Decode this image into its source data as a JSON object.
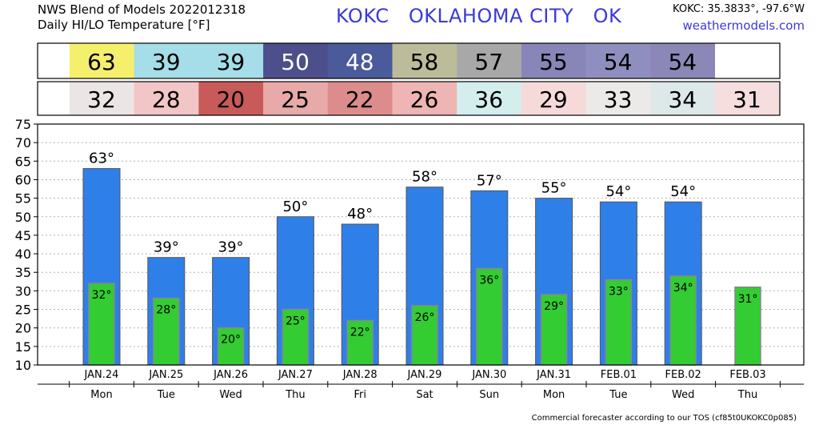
{
  "header": {
    "line1": "NWS Blend of Models 2022012318",
    "line2": "Daily HI/LO Temperature [°F]",
    "station": "KOKC   OKLAHOMA CITY   OK",
    "coords": "KOKC: 35.3833°, -97.6°W",
    "site": "weathermodels.com"
  },
  "footer": "Commercial forecaster according to our TOS (cf85t0UKOKC0p085)",
  "colors": {
    "high_bar": "#2f7fe8",
    "low_bar": "#33cc33",
    "high_strip": [
      "#f5ef6e",
      "#a5dde8",
      "#a5dde8",
      "#4c4f8c",
      "#4a5a9a",
      "#bcbc9a",
      "#a8a8a8",
      "#8886b8",
      "#8f8fbf",
      "#8b88b8",
      "#ffffff"
    ],
    "low_strip": [
      "#ece5e5",
      "#f2c6c6",
      "#c85a5a",
      "#e8a9a9",
      "#dc8c8c",
      "#efb4b4",
      "#d4eeee",
      "#f6dada",
      "#ece9e9",
      "#dde9e9",
      "#f6dede"
    ],
    "high_strip_text": [
      "#000000",
      "#000000",
      "#000000",
      "#ffffff",
      "#ffffff",
      "#000000",
      "#000000",
      "#000000",
      "#000000",
      "#000000",
      "#000000"
    ]
  },
  "chart_data": {
    "type": "bar",
    "title": "Daily HI/LO Temperature [°F]",
    "categories": [
      "JAN.24",
      "JAN.25",
      "JAN.26",
      "JAN.27",
      "JAN.28",
      "JAN.29",
      "JAN.30",
      "JAN.31",
      "FEB.01",
      "FEB.02",
      "FEB.03"
    ],
    "weekdays": [
      "Mon",
      "Tue",
      "Wed",
      "Thu",
      "Fri",
      "Sat",
      "Sun",
      "Mon",
      "Tue",
      "Wed",
      "Thu"
    ],
    "series": [
      {
        "name": "HI",
        "values": [
          63,
          39,
          39,
          50,
          48,
          58,
          57,
          55,
          54,
          54,
          null
        ]
      },
      {
        "name": "LO",
        "values": [
          32,
          28,
          20,
          25,
          22,
          26,
          36,
          29,
          33,
          34,
          31
        ]
      }
    ],
    "yticks": [
      10,
      15,
      20,
      25,
      30,
      35,
      40,
      45,
      50,
      55,
      60,
      65,
      70,
      75
    ],
    "ylim": [
      10,
      75
    ],
    "value_suffix": "°",
    "grid": true
  }
}
